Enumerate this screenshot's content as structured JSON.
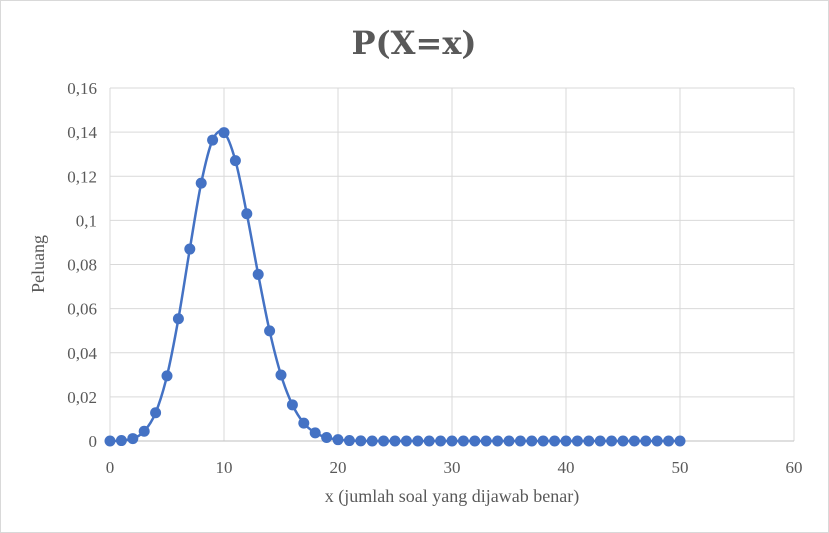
{
  "chart_data": {
    "type": "scatter",
    "title": "P(X=x)",
    "xlabel": "x (jumlah soal yang dijawab benar)",
    "ylabel": "Peluang",
    "xlim": [
      0,
      60
    ],
    "ylim": [
      0,
      0.16
    ],
    "x_ticks": [
      0,
      10,
      20,
      30,
      40,
      50,
      60
    ],
    "x_tick_labels": [
      "0",
      "10",
      "20",
      "30",
      "40",
      "50",
      "60"
    ],
    "y_ticks": [
      0,
      0.02,
      0.04,
      0.06,
      0.08,
      0.1,
      0.12,
      0.14,
      0.16
    ],
    "y_tick_labels": [
      "0",
      "0,02",
      "0,04",
      "0,06",
      "0,08",
      "0,1",
      "0,12",
      "0,14",
      "0,16"
    ],
    "grid": true,
    "line_color": "#4472c4",
    "series": [
      {
        "x": [
          0,
          1,
          2,
          3,
          4,
          5,
          6,
          7,
          8,
          9,
          10,
          11,
          12,
          13,
          14,
          15,
          16,
          17,
          18,
          19,
          20,
          21,
          22,
          23,
          24,
          25,
          26,
          27,
          28,
          29,
          30,
          31,
          32,
          33,
          34,
          35,
          36,
          37,
          38,
          39,
          40,
          41,
          42,
          43,
          44,
          45,
          46,
          47,
          48,
          49,
          50
        ],
        "y": [
          1e-05,
          0.0002,
          0.0011,
          0.0044,
          0.0128,
          0.0295,
          0.0554,
          0.087,
          0.1169,
          0.1364,
          0.1398,
          0.1271,
          0.103,
          0.0755,
          0.0499,
          0.0299,
          0.0164,
          0.0081,
          0.0037,
          0.0016,
          0.0006,
          0.0002,
          6e-05,
          2e-05,
          0,
          0,
          0,
          0,
          0,
          0,
          0,
          0,
          0,
          0,
          0,
          0,
          0,
          0,
          0,
          0,
          0,
          0,
          0,
          0,
          0,
          0,
          0,
          0,
          0,
          0,
          0
        ]
      }
    ]
  }
}
